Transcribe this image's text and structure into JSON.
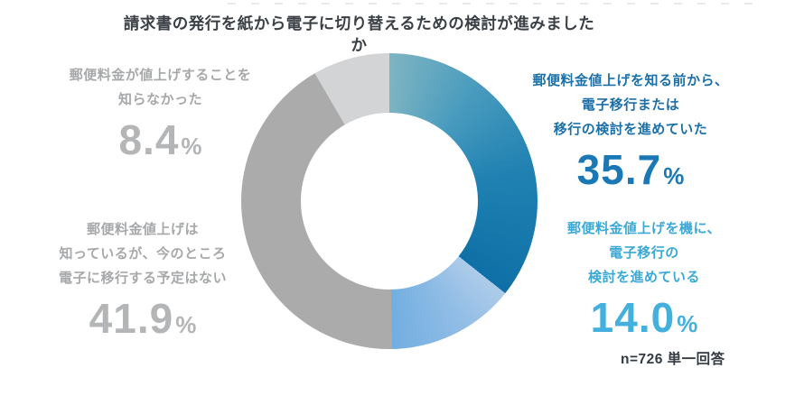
{
  "page": {
    "background": "#ffffff"
  },
  "title": {
    "text": "請求書の発行を紙から電子に切り替えるための検討が進みましたか",
    "color": "#3a4046"
  },
  "note": {
    "text": "n=726 単一回答",
    "color": "#333a42"
  },
  "chart_data": {
    "type": "pie",
    "variant": "donut",
    "title": "請求書の発行を紙から電子に切り替えるための検討が進みましたか",
    "start_angle_deg": 0,
    "direction": "clockwise",
    "sample_note": "n=726 単一回答",
    "segments": [
      {
        "label": "郵便料金値上げを知る前から、電子移行または移行の検討を進めていた",
        "value": 35.7,
        "color_stops": [
          [
            "#7eb4c2",
            0
          ],
          [
            "#4a9cbe",
            0.28
          ],
          [
            "#2081b2",
            0.6
          ],
          [
            "#0e70a6",
            1
          ]
        ]
      },
      {
        "label": "郵便料金値上げを機に、電子移行の検討を進めている",
        "value": 14.0,
        "color_stops": [
          [
            "#aecce9",
            0
          ],
          [
            "#8fbce5",
            0.45
          ],
          [
            "#72aee1",
            1
          ]
        ]
      },
      {
        "label": "郵便料金値上げは知っているが、今のところ電子に移行する予定はない",
        "value": 41.9,
        "color_stops": [
          [
            "#ababab",
            0
          ],
          [
            "#ababab",
            1
          ]
        ]
      },
      {
        "label": "郵便料金が値上げすることを知らなかった",
        "value": 8.4,
        "color_stops": [
          [
            "#d3d4d5",
            0
          ],
          [
            "#d3d4d5",
            1
          ]
        ]
      }
    ]
  },
  "callouts": {
    "top_left": {
      "lines": [
        "郵便料金が値上げすることを",
        "知らなかった"
      ],
      "value": "8.4",
      "unit": "%",
      "label_color": "#a6a8aa",
      "value_color": "#b3b5b7"
    },
    "bottom_left": {
      "lines": [
        "郵便料金値上げは",
        "知っているが、今のところ",
        "電子に移行する予定はない"
      ],
      "value": "41.9",
      "unit": "%",
      "label_color": "#a6a8aa",
      "value_color": "#b3b5b7"
    },
    "top_right": {
      "lines": [
        "郵便料金値上げを知る前から、",
        "電子移行または",
        "移行の検討を進めていた"
      ],
      "value": "35.7",
      "unit": "%",
      "label_color": "#1c70a9",
      "value_color": "#1a78b4"
    },
    "bottom_right": {
      "lines": [
        "郵便料金値上げを機に、",
        "電子移行の",
        "検討を進めている"
      ],
      "value": "14.0",
      "unit": "%",
      "label_color": "#3ba9d6",
      "value_color": "#43b0dd"
    }
  }
}
